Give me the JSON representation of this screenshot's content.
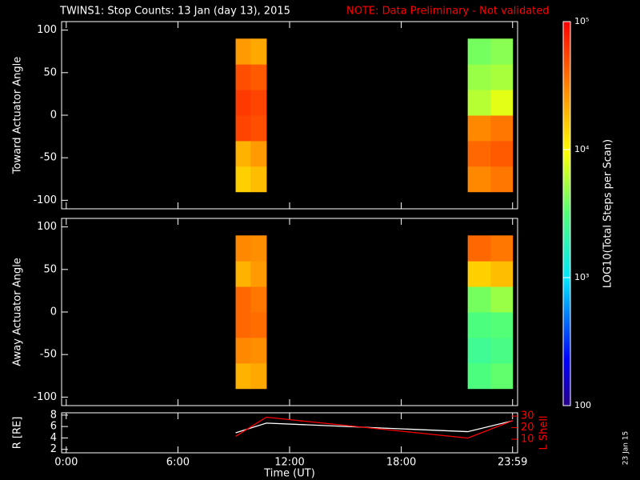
{
  "chart_data": [
    {
      "type": "heatmap",
      "title": "TWINS1: Stop Counts: 13 Jan (day  13), 2015",
      "note": "NOTE: Data Preliminary - Not validated",
      "ylabel": "Toward Actuator Angle",
      "xlim": [
        -0.25,
        24.25
      ],
      "ylim": [
        -110,
        110
      ],
      "yticks": [
        -100,
        -50,
        0,
        50,
        100
      ],
      "x": [
        9.1,
        9.9,
        10.75,
        21.57,
        22.8,
        23.98
      ],
      "bins": [
        -90,
        -60,
        -30,
        0,
        30,
        60,
        90
      ],
      "values": [
        [
          15000,
          20000,
          55000,
          60000,
          50000,
          25000
        ],
        [
          18000,
          25000,
          50000,
          55000,
          45000,
          22000
        ],
        null,
        [
          30000,
          40000,
          30000,
          6000,
          5000,
          4000
        ],
        [
          35000,
          45000,
          35000,
          8000,
          5500,
          4500
        ]
      ],
      "colorbar": {
        "label": "LOG10(Total Steps per Scan)",
        "lim": [
          100,
          100000
        ],
        "log": true,
        "ticks": [
          {
            "value": 100000,
            "label": "10⁵"
          },
          {
            "value": 10000,
            "label": "10⁴"
          },
          {
            "value": 1000,
            "label": "10³"
          },
          100
        ]
      }
    },
    {
      "type": "heatmap",
      "ylabel": "Away Actuator Angle",
      "xlim": [
        -0.25,
        24.25
      ],
      "ylim": [
        -110,
        110
      ],
      "yticks": [
        -100,
        -50,
        0,
        50,
        100
      ],
      "x": [
        9.1,
        9.9,
        10.75,
        21.57,
        22.8,
        23.98
      ],
      "bins": [
        -90,
        -60,
        -30,
        0,
        30,
        60,
        90
      ],
      "values": [
        [
          20000,
          30000,
          40000,
          40000,
          20000,
          30000
        ],
        [
          22000,
          28000,
          38000,
          35000,
          25000,
          28000
        ],
        null,
        [
          3000,
          2500,
          3000,
          4000,
          15000,
          40000
        ],
        [
          3500,
          2800,
          3200,
          5000,
          18000,
          35000
        ]
      ]
    },
    {
      "type": "line",
      "ylabel": "R [RE]",
      "y2label": "L Shell",
      "xlabel": "Time (UT)",
      "stamp": "23 Jan 15",
      "xlim": [
        -0.25,
        24.25
      ],
      "xticks": [
        {
          "value": 0,
          "label": "0:00"
        },
        {
          "value": 6,
          "label": "6:00"
        },
        {
          "value": 12,
          "label": "12:00"
        },
        {
          "value": 18,
          "label": "18:00"
        },
        {
          "value": 23.98,
          "label": "23:59"
        }
      ],
      "ylim": [
        1.4,
        8.4
      ],
      "yticks": [
        2,
        4,
        6,
        8
      ],
      "y2lim": [
        -1.7,
        32.8
      ],
      "y2ticks": [
        10,
        20,
        30
      ],
      "x": [
        9.1,
        10.75,
        21.57,
        23.98
      ],
      "series": [
        {
          "name": "R",
          "color": "#ffffff",
          "values": [
            4.9,
            6.6,
            5.1,
            7.0
          ]
        },
        {
          "name": "L Shell",
          "color": "#ff0000",
          "axis": "y2",
          "values": [
            12.5,
            29,
            11,
            26
          ]
        }
      ]
    }
  ]
}
